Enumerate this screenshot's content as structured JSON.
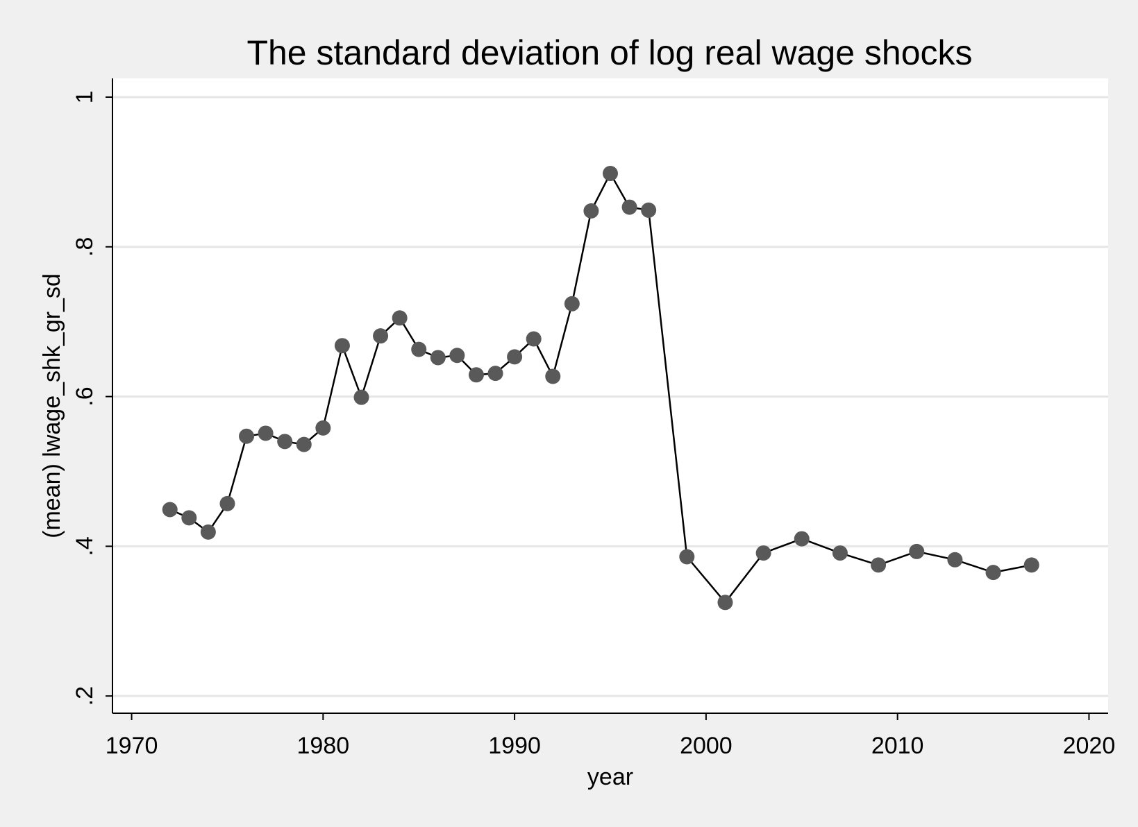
{
  "chart_data": {
    "type": "line",
    "title": "The standard deviation of log real wage shocks",
    "xlabel": "year",
    "ylabel": "(mean) lwage_shk_gr_sd",
    "xlim": [
      1969,
      2021
    ],
    "ylim": [
      0.177,
      1.025
    ],
    "xticks": [
      1970,
      1980,
      1990,
      2000,
      2010,
      2020
    ],
    "xtick_labels": [
      "1970",
      "1980",
      "1990",
      "2000",
      "2010",
      "2020"
    ],
    "yticks": [
      0.2,
      0.4,
      0.6,
      0.8,
      1.0
    ],
    "ytick_labels": [
      ".2",
      ".4",
      ".6",
      ".8",
      "1"
    ],
    "grid": true,
    "markers": true,
    "colors": {
      "line": "#000000",
      "marker": "#595959",
      "plot_background": "#ffffff",
      "page_background": "#f0f0f0",
      "grid": "#e6e6e6"
    },
    "x": [
      1972,
      1973,
      1974,
      1975,
      1976,
      1977,
      1978,
      1979,
      1980,
      1981,
      1982,
      1983,
      1984,
      1985,
      1986,
      1987,
      1988,
      1989,
      1990,
      1991,
      1992,
      1993,
      1994,
      1995,
      1996,
      1997,
      1999,
      2001,
      2003,
      2005,
      2007,
      2009,
      2011,
      2013,
      2015,
      2017
    ],
    "series": [
      {
        "values": [
          0.449,
          0.438,
          0.419,
          0.457,
          0.547,
          0.551,
          0.54,
          0.536,
          0.558,
          0.668,
          0.599,
          0.681,
          0.705,
          0.663,
          0.652,
          0.655,
          0.629,
          0.631,
          0.653,
          0.677,
          0.627,
          0.724,
          0.848,
          0.898,
          0.853,
          0.849,
          0.386,
          0.325,
          0.391,
          0.41,
          0.391,
          0.375,
          0.393,
          0.382,
          0.365,
          0.375
        ]
      }
    ]
  }
}
